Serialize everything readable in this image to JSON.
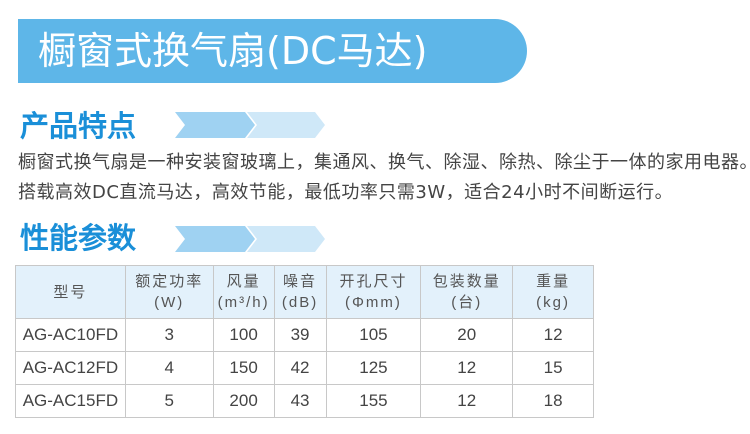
{
  "title": "橱窗式换气扇(DC马达)",
  "colors": {
    "banner": "#5eb6e8",
    "section": "#1a8fd8",
    "arrow_dark": "#9fd2f2",
    "arrow_light": "#cfe8f8",
    "header_bg": "#e3f1fb"
  },
  "features": {
    "heading": "产品特点",
    "lines": [
      "橱窗式换气扇是一种安装窗玻璃上，集通风、换气、除湿、除热、除尘于一体的家用电器。",
      "搭载高效DC直流马达，高效节能，最低功率只需3W，适合24小时不间断运行。"
    ]
  },
  "specs": {
    "heading": "性能参数",
    "headers": [
      [
        "型号",
        ""
      ],
      [
        "额定功率",
        "(W)"
      ],
      [
        "风量",
        "(m³/h)"
      ],
      [
        "噪音",
        "(dB)"
      ],
      [
        "开孔尺寸",
        "(Φmm)"
      ],
      [
        "包装数量",
        "(台)"
      ],
      [
        "重量",
        "(kg)"
      ]
    ],
    "rows": [
      [
        "AG-AC10FD",
        "3",
        "100",
        "39",
        "105",
        "20",
        "12"
      ],
      [
        "AG-AC12FD",
        "4",
        "150",
        "42",
        "125",
        "12",
        "15"
      ],
      [
        "AG-AC15FD",
        "5",
        "200",
        "43",
        "155",
        "12",
        "18"
      ]
    ]
  }
}
